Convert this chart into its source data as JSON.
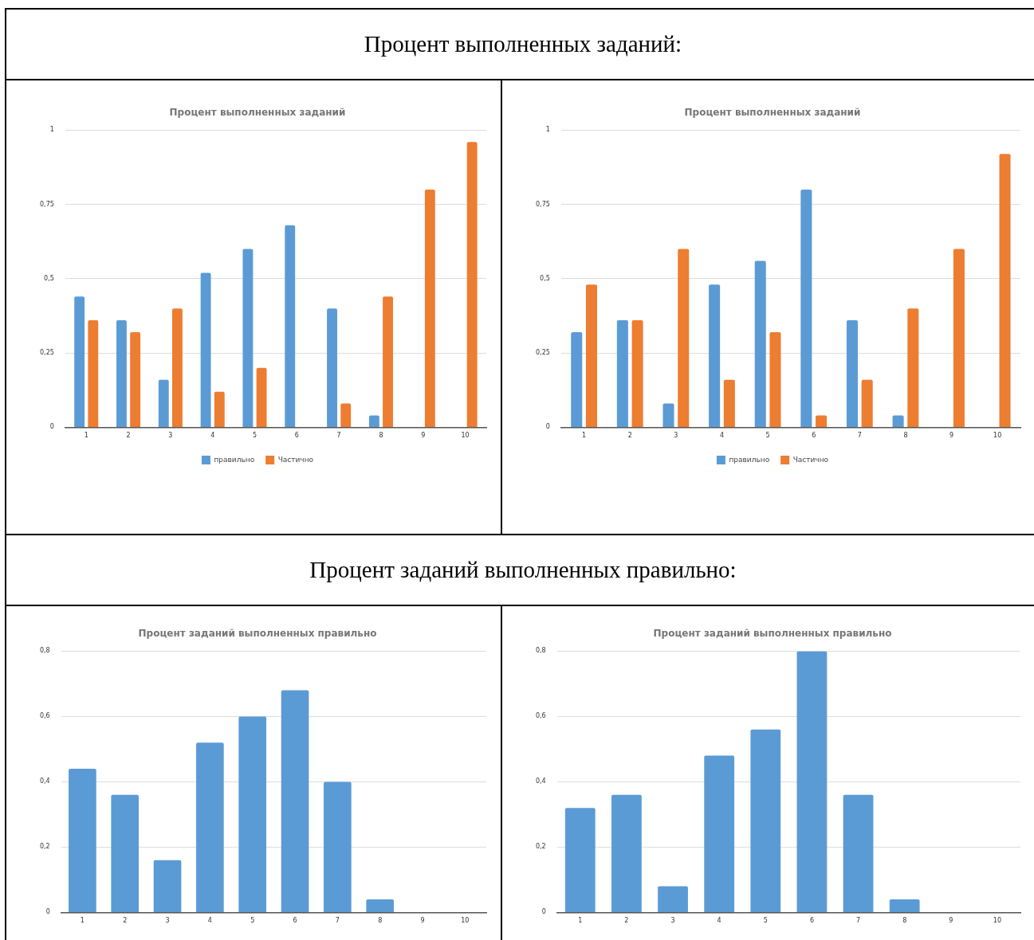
{
  "chart_data": [
    {
      "type": "other",
      "title": "Процент выполненных заданий:"
    },
    {
      "type": "bar",
      "title": "Процент выполненных заданий",
      "categories": [
        "1",
        "2",
        "3",
        "4",
        "5",
        "6",
        "7",
        "8",
        "9",
        "10"
      ],
      "series": [
        {
          "name": "правильно",
          "color": "#5b9bd5",
          "values": [
            0.44,
            0.36,
            0.16,
            0.52,
            0.6,
            0.68,
            0.4,
            0.04,
            0,
            0
          ]
        },
        {
          "name": "Частично",
          "color": "#ed7d31",
          "values": [
            0.36,
            0.32,
            0.4,
            0.12,
            0.2,
            0,
            0.08,
            0.44,
            0.8,
            0.96
          ]
        }
      ],
      "ylim": [
        0,
        1
      ],
      "yticks": [
        {
          "value": 0,
          "label": "0"
        },
        {
          "value": 0.25,
          "label": "0,25"
        },
        {
          "value": 0.5,
          "label": "0,5"
        },
        {
          "value": 0.75,
          "label": "0,75"
        },
        {
          "value": 1,
          "label": "1"
        }
      ],
      "grid": "y",
      "legend": "bottom"
    },
    {
      "type": "bar",
      "title": "Процент выполненных заданий",
      "categories": [
        "1",
        "2",
        "3",
        "4",
        "5",
        "6",
        "7",
        "8",
        "9",
        "10"
      ],
      "series": [
        {
          "name": "правильно",
          "color": "#5b9bd5",
          "values": [
            0.32,
            0.36,
            0.08,
            0.48,
            0.56,
            0.8,
            0.36,
            0.04,
            0,
            0
          ]
        },
        {
          "name": "Частично",
          "color": "#ed7d31",
          "values": [
            0.48,
            0.36,
            0.6,
            0.16,
            0.32,
            0.04,
            0.16,
            0.4,
            0.6,
            0.92
          ]
        }
      ],
      "ylim": [
        0,
        1
      ],
      "yticks": [
        {
          "value": 0,
          "label": "0"
        },
        {
          "value": 0.25,
          "label": "0,25"
        },
        {
          "value": 0.5,
          "label": "0,5"
        },
        {
          "value": 0.75,
          "label": "0,75"
        },
        {
          "value": 1,
          "label": "1"
        }
      ],
      "grid": "y",
      "legend": "bottom"
    },
    {
      "type": "other",
      "title": "Процент заданий выполненных правильно:"
    },
    {
      "type": "bar",
      "title": "Процент заданий выполненных правильно",
      "categories": [
        "1",
        "2",
        "3",
        "4",
        "5",
        "6",
        "7",
        "8",
        "9",
        "10"
      ],
      "series": [
        {
          "color": "#5b9bd5",
          "values": [
            0.44,
            0.36,
            0.16,
            0.52,
            0.6,
            0.68,
            0.4,
            0.04,
            0,
            0
          ]
        }
      ],
      "ylim": [
        0,
        0.8
      ],
      "yticks": [
        {
          "value": 0,
          "label": "0"
        },
        {
          "value": 0.2,
          "label": "0,2"
        },
        {
          "value": 0.4,
          "label": "0,4"
        },
        {
          "value": 0.6,
          "label": "0,6"
        },
        {
          "value": 0.8,
          "label": "0,8"
        }
      ],
      "grid": "y"
    },
    {
      "type": "bar",
      "title": "Процент заданий выполненных правильно",
      "categories": [
        "1",
        "2",
        "3",
        "4",
        "5",
        "6",
        "7",
        "8",
        "9",
        "10"
      ],
      "series": [
        {
          "color": "#5b9bd5",
          "values": [
            0.32,
            0.36,
            0.08,
            0.48,
            0.56,
            0.8,
            0.36,
            0.04,
            0,
            0
          ]
        }
      ],
      "ylim": [
        0,
        0.8
      ],
      "yticks": [
        {
          "value": 0,
          "label": "0"
        },
        {
          "value": 0.2,
          "label": "0,2"
        },
        {
          "value": 0.4,
          "label": "0,4"
        },
        {
          "value": 0.6,
          "label": "0,6"
        },
        {
          "value": 0.8,
          "label": "0,8"
        }
      ],
      "grid": "y"
    }
  ]
}
